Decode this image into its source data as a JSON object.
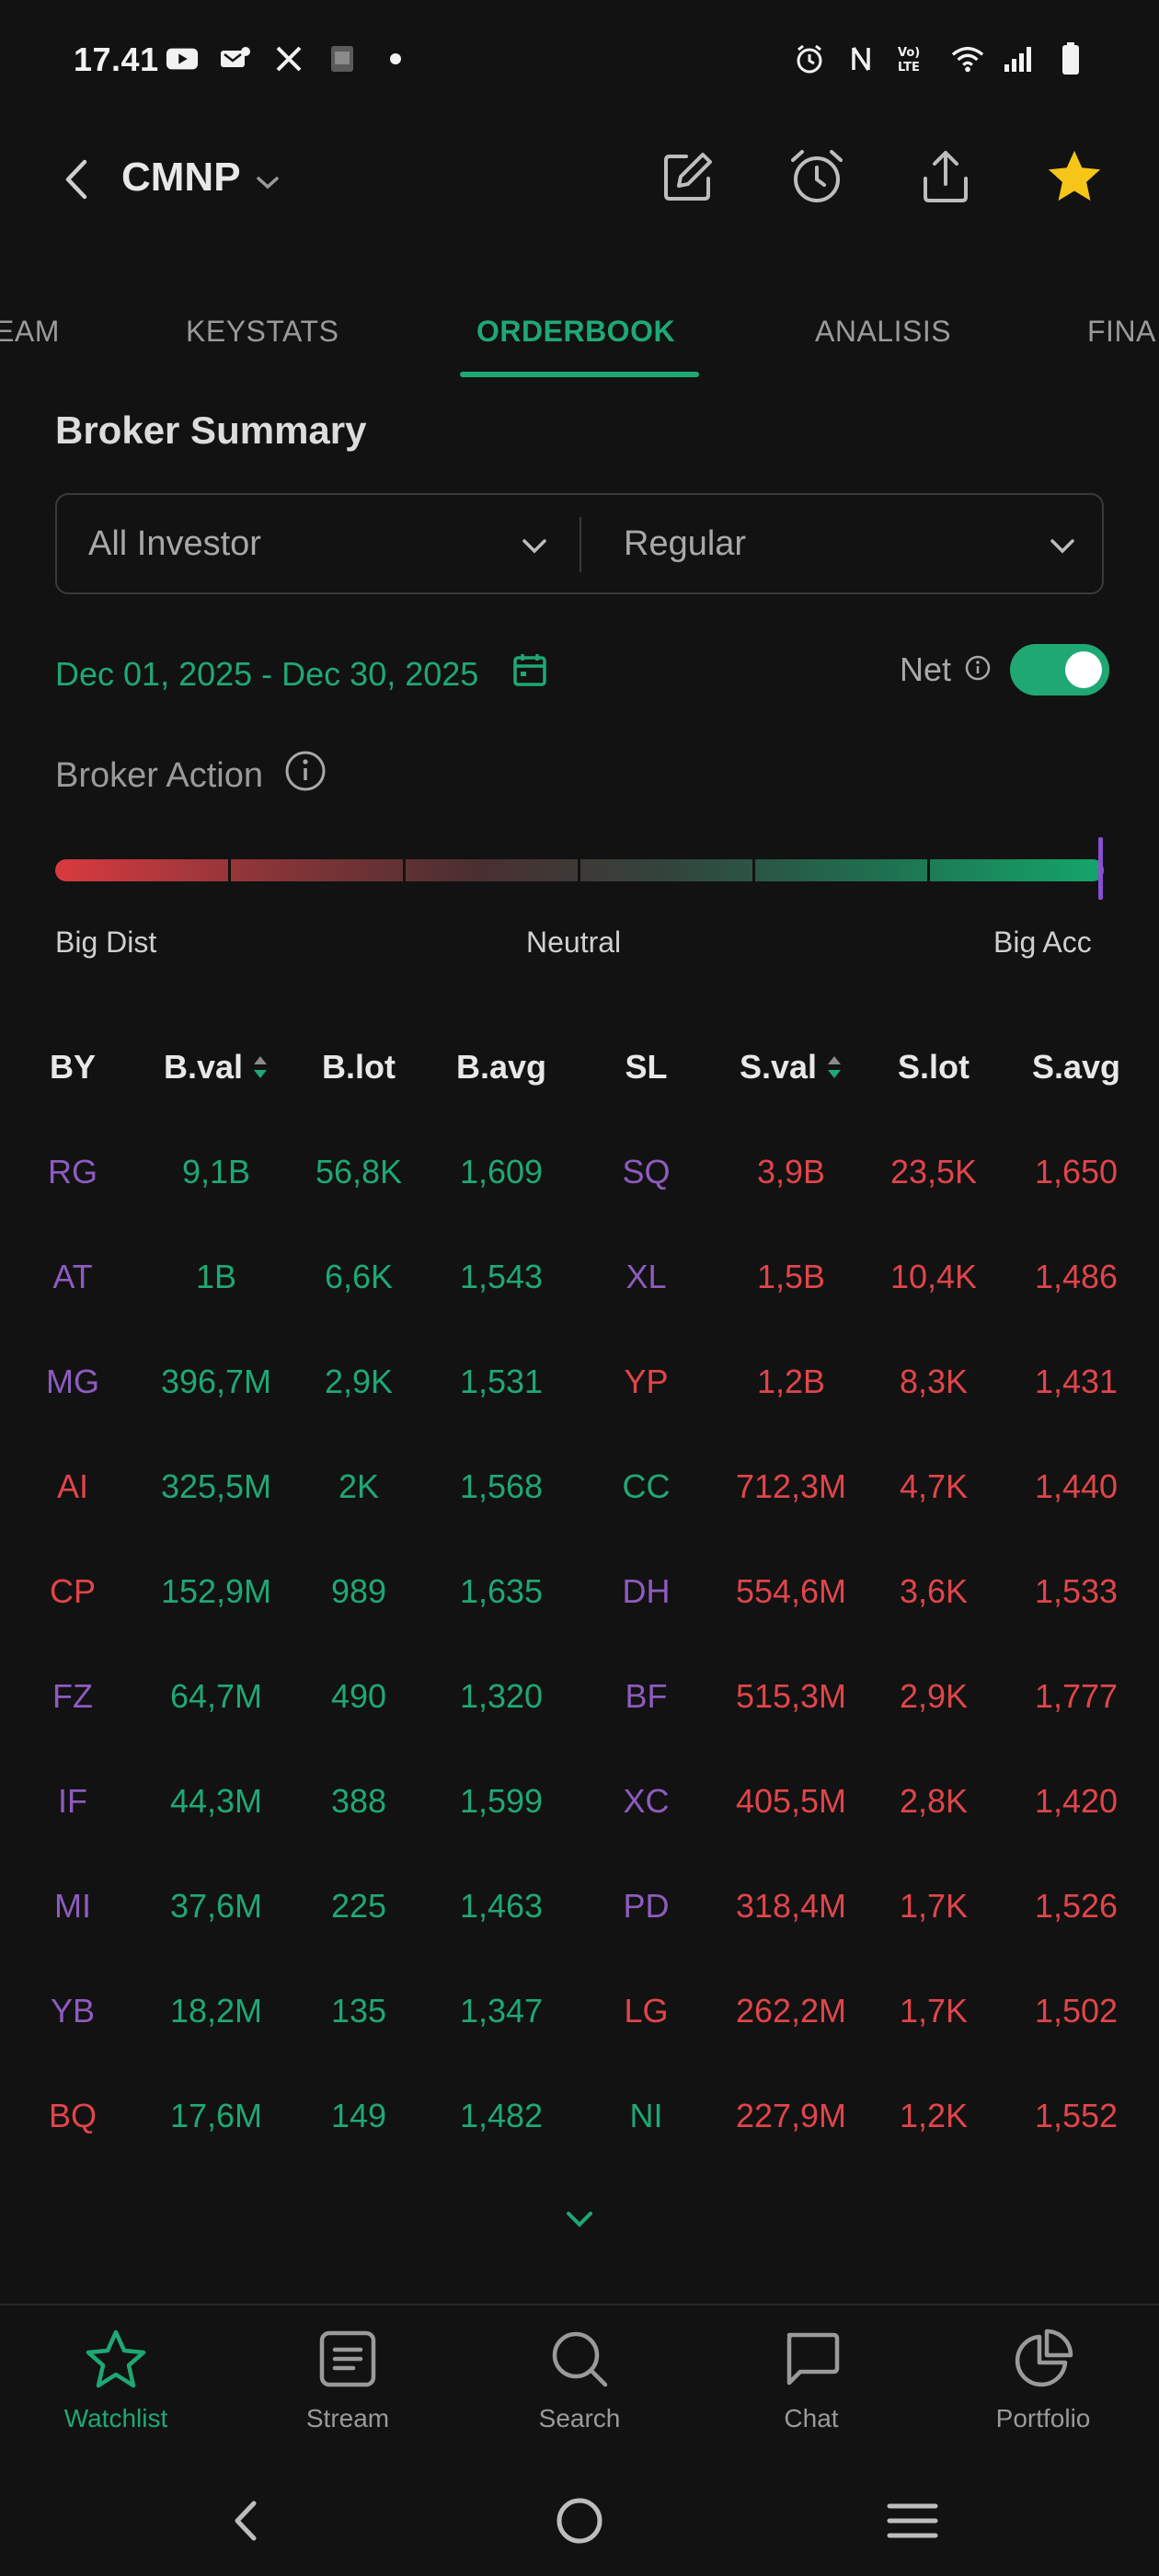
{
  "status_bar": {
    "time": "17.41",
    "left_icons": [
      "youtube-icon",
      "notification-icon",
      "x-icon",
      "app-icon",
      "dot-icon"
    ],
    "right_icons": [
      "alarm-icon",
      "nfc-icon",
      "volte-icon",
      "wifi-icon",
      "signal-icon",
      "battery-icon"
    ],
    "volte_text": "Vo) LTE"
  },
  "header": {
    "ticker": "CMNP",
    "actions": [
      "edit-icon",
      "alarm-clock-icon",
      "share-icon",
      "star-icon"
    ],
    "star_color": "#f5c518"
  },
  "tabs": [
    {
      "label": "EAM",
      "active": false
    },
    {
      "label": "KEYSTATS",
      "active": false
    },
    {
      "label": "ORDERBOOK",
      "active": true
    },
    {
      "label": "ANALISIS",
      "active": false
    },
    {
      "label": "FINA",
      "active": false
    }
  ],
  "broker_summary": {
    "title": "Broker Summary",
    "investor_filter": "All Investor",
    "market_filter": "Regular",
    "date_range": "Dec 01, 2025 - Dec 30, 2025",
    "net_label": "Net",
    "net_enabled": true
  },
  "broker_action": {
    "label": "Broker Action",
    "left_label": "Big Dist",
    "center_label": "Neutral",
    "right_label": "Big Acc",
    "position_fraction": 1.0
  },
  "table": {
    "headers": {
      "by": "BY",
      "bval": "B.val",
      "blot": "B.lot",
      "bavg": "B.avg",
      "sl": "SL",
      "sval": "S.val",
      "slot": "S.lot",
      "savg": "S.avg"
    },
    "rows": [
      {
        "by": "RG",
        "by_color": "purple",
        "bval": "9,1B",
        "blot": "56,8K",
        "bavg": "1,609",
        "sl": "SQ",
        "sl_color": "purple",
        "sval": "3,9B",
        "slot": "23,5K",
        "savg": "1,650"
      },
      {
        "by": "AT",
        "by_color": "purple",
        "bval": "1B",
        "blot": "6,6K",
        "bavg": "1,543",
        "sl": "XL",
        "sl_color": "purple",
        "sval": "1,5B",
        "slot": "10,4K",
        "savg": "1,486"
      },
      {
        "by": "MG",
        "by_color": "purple",
        "bval": "396,7M",
        "blot": "2,9K",
        "bavg": "1,531",
        "sl": "YP",
        "sl_color": "red",
        "sval": "1,2B",
        "slot": "8,3K",
        "savg": "1,431"
      },
      {
        "by": "AI",
        "by_color": "red",
        "bval": "325,5M",
        "blot": "2K",
        "bavg": "1,568",
        "sl": "CC",
        "sl_color": "green",
        "sval": "712,3M",
        "slot": "4,7K",
        "savg": "1,440"
      },
      {
        "by": "CP",
        "by_color": "red",
        "bval": "152,9M",
        "blot": "989",
        "bavg": "1,635",
        "sl": "DH",
        "sl_color": "purple",
        "sval": "554,6M",
        "slot": "3,6K",
        "savg": "1,533"
      },
      {
        "by": "FZ",
        "by_color": "purple",
        "bval": "64,7M",
        "blot": "490",
        "bavg": "1,320",
        "sl": "BF",
        "sl_color": "purple",
        "sval": "515,3M",
        "slot": "2,9K",
        "savg": "1,777"
      },
      {
        "by": "IF",
        "by_color": "purple",
        "bval": "44,3M",
        "blot": "388",
        "bavg": "1,599",
        "sl": "XC",
        "sl_color": "purple",
        "sval": "405,5M",
        "slot": "2,8K",
        "savg": "1,420"
      },
      {
        "by": "MI",
        "by_color": "purple",
        "bval": "37,6M",
        "blot": "225",
        "bavg": "1,463",
        "sl": "PD",
        "sl_color": "purple",
        "sval": "318,4M",
        "slot": "1,7K",
        "savg": "1,526"
      },
      {
        "by": "YB",
        "by_color": "purple",
        "bval": "18,2M",
        "blot": "135",
        "bavg": "1,347",
        "sl": "LG",
        "sl_color": "red",
        "sval": "262,2M",
        "slot": "1,7K",
        "savg": "1,502"
      },
      {
        "by": "BQ",
        "by_color": "red",
        "bval": "17,6M",
        "blot": "149",
        "bavg": "1,482",
        "sl": "NI",
        "sl_color": "green",
        "sval": "227,9M",
        "slot": "1,2K",
        "savg": "1,552"
      }
    ]
  },
  "bottom_nav": [
    {
      "label": "Watchlist",
      "icon": "star-outline-icon",
      "active": true
    },
    {
      "label": "Stream",
      "icon": "stream-icon",
      "active": false
    },
    {
      "label": "Search",
      "icon": "search-icon",
      "active": false
    },
    {
      "label": "Chat",
      "icon": "chat-icon",
      "active": false
    },
    {
      "label": "Portfolio",
      "icon": "pie-chart-icon",
      "active": false
    }
  ],
  "colors": {
    "accent_green": "#1fa874",
    "red": "#e0454a",
    "purple": "#8e5bbf",
    "background": "#121212"
  }
}
